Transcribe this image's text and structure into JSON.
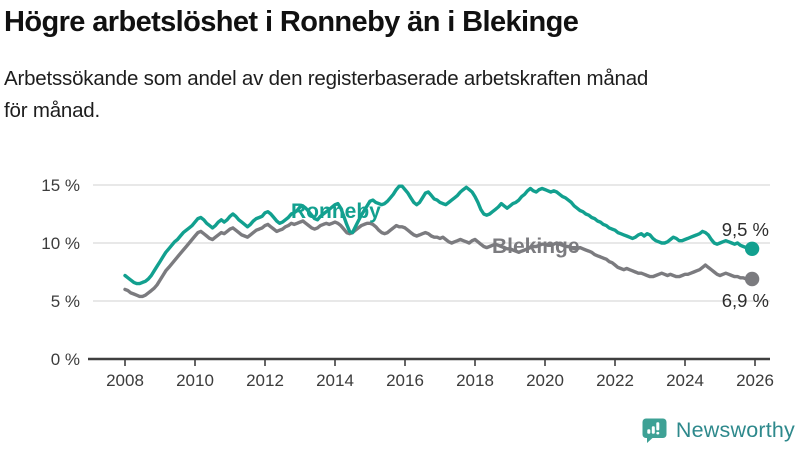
{
  "header": {
    "title": "Högre arbetslöshet i Ronneby än i Blekinge",
    "subtitle_lines": [
      "Arbetssökande som andel av den registerbaserade arbetskraften månad",
      "för månad."
    ]
  },
  "footer": {
    "brand": "Newsworthy"
  },
  "chart_data": {
    "type": "line",
    "title": "Högre arbetslöshet i Ronneby än i Blekinge",
    "subtitle": "Arbetssökande som andel av den registerbaserade arbetskraften månad för månad.",
    "unit": "%",
    "frequency": "monthly",
    "start": "2008-01",
    "grid": true,
    "legend_position": "inline-labels",
    "x_axis": {
      "label": "",
      "range": [
        2008,
        2026.3
      ],
      "ticks": [
        "2008",
        "2010",
        "2012",
        "2014",
        "2016",
        "2018",
        "2020",
        "2022",
        "2024",
        "2026"
      ]
    },
    "y_axis": {
      "label": "",
      "range": [
        0,
        15.5
      ],
      "ticks": [
        {
          "value": 0,
          "label": "0 %"
        },
        {
          "value": 5,
          "label": "5 %"
        },
        {
          "value": 10,
          "label": "10 %"
        },
        {
          "value": 15,
          "label": "15 %"
        }
      ]
    },
    "style": {
      "grid_color": "#D9D9D9",
      "axis_color": "#3F3F3F",
      "label_color": "#3C3C3C",
      "end_label_color": "#2E2E2E",
      "accent_teal": "#12A08F",
      "accent_gray": "#7B7B7F"
    },
    "series": [
      {
        "id": "ronneby",
        "name": "Ronneby",
        "label": "Ronneby",
        "color": "#12A08F",
        "end_label": "9,5 %",
        "end_value": 9.5,
        "values": [
          7.2,
          7.0,
          6.8,
          6.6,
          6.5,
          6.5,
          6.6,
          6.7,
          6.9,
          7.2,
          7.6,
          8.0,
          8.4,
          8.8,
          9.2,
          9.5,
          9.8,
          10.1,
          10.3,
          10.6,
          10.9,
          11.1,
          11.3,
          11.5,
          11.8,
          12.1,
          12.2,
          12.0,
          11.7,
          11.5,
          11.3,
          11.5,
          11.8,
          12.0,
          11.8,
          12.0,
          12.3,
          12.5,
          12.3,
          12.0,
          11.8,
          11.6,
          11.4,
          11.6,
          11.9,
          12.1,
          12.2,
          12.3,
          12.6,
          12.7,
          12.5,
          12.2,
          11.9,
          11.7,
          11.8,
          12.0,
          12.2,
          12.5,
          12.6,
          12.8,
          13.1,
          13.2,
          13.0,
          12.7,
          12.4,
          12.1,
          12.0,
          12.3,
          12.5,
          12.7,
          12.9,
          13.1,
          13.3,
          13.4,
          13.0,
          12.3,
          11.6,
          11.0,
          10.9,
          11.4,
          11.9,
          12.4,
          12.8,
          13.2,
          13.6,
          13.7,
          13.5,
          13.4,
          13.3,
          13.4,
          13.6,
          13.9,
          14.2,
          14.6,
          14.9,
          14.9,
          14.6,
          14.3,
          13.9,
          13.5,
          13.3,
          13.5,
          13.9,
          14.3,
          14.4,
          14.1,
          13.8,
          13.7,
          13.5,
          13.4,
          13.3,
          13.5,
          13.7,
          13.9,
          14.1,
          14.4,
          14.6,
          14.8,
          14.6,
          14.4,
          14.0,
          13.5,
          12.9,
          12.5,
          12.4,
          12.5,
          12.7,
          12.9,
          13.1,
          13.4,
          13.2,
          13.0,
          13.2,
          13.4,
          13.5,
          13.7,
          14.0,
          14.2,
          14.5,
          14.7,
          14.5,
          14.4,
          14.6,
          14.7,
          14.6,
          14.5,
          14.4,
          14.5,
          14.4,
          14.2,
          14.0,
          13.9,
          13.7,
          13.5,
          13.2,
          13.0,
          12.8,
          12.7,
          12.5,
          12.4,
          12.2,
          12.1,
          11.9,
          11.8,
          11.6,
          11.5,
          11.3,
          11.2,
          11.1,
          10.9,
          10.8,
          10.7,
          10.6,
          10.5,
          10.4,
          10.5,
          10.7,
          10.8,
          10.6,
          10.8,
          10.7,
          10.4,
          10.2,
          10.1,
          10.0,
          10.0,
          10.1,
          10.3,
          10.5,
          10.4,
          10.2,
          10.2,
          10.3,
          10.4,
          10.5,
          10.6,
          10.7,
          10.8,
          11.0,
          10.9,
          10.7,
          10.3,
          10.0,
          9.9,
          10.0,
          10.1,
          10.2,
          10.1,
          10.0,
          9.9,
          10.0,
          9.8,
          9.7,
          9.6,
          9.5,
          9.5
        ]
      },
      {
        "id": "blekinge",
        "name": "Blekinge",
        "label": "Blekinge",
        "color": "#7B7B7F",
        "end_label": "6,9 %",
        "end_value": 6.9,
        "values": [
          6.0,
          5.9,
          5.7,
          5.6,
          5.5,
          5.4,
          5.4,
          5.5,
          5.7,
          5.9,
          6.1,
          6.4,
          6.8,
          7.2,
          7.6,
          7.9,
          8.2,
          8.5,
          8.8,
          9.1,
          9.4,
          9.7,
          10.0,
          10.3,
          10.6,
          10.9,
          11.0,
          10.8,
          10.6,
          10.4,
          10.3,
          10.5,
          10.7,
          10.9,
          10.8,
          11.0,
          11.2,
          11.3,
          11.1,
          10.9,
          10.7,
          10.6,
          10.5,
          10.7,
          10.9,
          11.1,
          11.2,
          11.3,
          11.5,
          11.6,
          11.4,
          11.2,
          11.0,
          11.1,
          11.2,
          11.4,
          11.5,
          11.7,
          11.6,
          11.7,
          11.8,
          11.9,
          11.7,
          11.5,
          11.3,
          11.2,
          11.3,
          11.5,
          11.6,
          11.7,
          11.6,
          11.7,
          11.8,
          11.7,
          11.5,
          11.2,
          10.9,
          10.8,
          10.9,
          11.1,
          11.3,
          11.5,
          11.6,
          11.7,
          11.7,
          11.6,
          11.4,
          11.1,
          10.9,
          10.8,
          10.9,
          11.1,
          11.3,
          11.5,
          11.4,
          11.4,
          11.3,
          11.1,
          10.9,
          10.7,
          10.6,
          10.7,
          10.8,
          10.9,
          10.8,
          10.6,
          10.5,
          10.5,
          10.4,
          10.5,
          10.3,
          10.1,
          10.0,
          10.1,
          10.2,
          10.3,
          10.2,
          10.1,
          10.0,
          10.2,
          10.3,
          10.1,
          9.9,
          9.7,
          9.6,
          9.7,
          9.8,
          9.9,
          9.8,
          9.7,
          9.6,
          9.5,
          9.5,
          9.4,
          9.3,
          9.2,
          9.3,
          9.4,
          9.5,
          9.6,
          9.7,
          9.7,
          9.8,
          9.9,
          9.9,
          9.8,
          9.8,
          9.9,
          10.0,
          9.9,
          9.8,
          9.7,
          9.7,
          9.6,
          9.5,
          9.5,
          9.6,
          9.5,
          9.4,
          9.3,
          9.2,
          9.0,
          8.9,
          8.8,
          8.7,
          8.6,
          8.4,
          8.3,
          8.1,
          7.9,
          7.8,
          7.7,
          7.8,
          7.7,
          7.6,
          7.5,
          7.4,
          7.4,
          7.3,
          7.2,
          7.1,
          7.1,
          7.2,
          7.3,
          7.4,
          7.3,
          7.2,
          7.3,
          7.2,
          7.1,
          7.1,
          7.2,
          7.3,
          7.3,
          7.4,
          7.5,
          7.6,
          7.7,
          7.9,
          8.1,
          7.9,
          7.7,
          7.5,
          7.3,
          7.2,
          7.3,
          7.4,
          7.3,
          7.2,
          7.1,
          7.1,
          7.0,
          7.0,
          6.9,
          6.9,
          6.9
        ]
      }
    ]
  }
}
